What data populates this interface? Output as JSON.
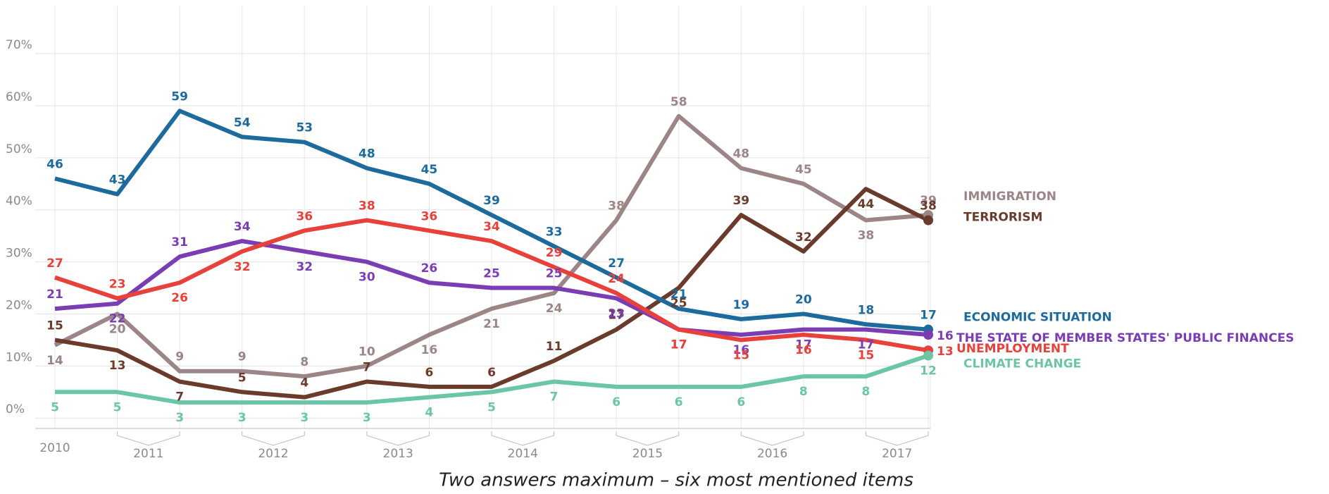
{
  "chart_data": {
    "type": "line",
    "caption": "Two answers maximum – six most mentioned items",
    "categories": [
      null,
      null,
      null,
      null,
      null,
      null,
      null,
      null,
      null,
      null,
      null,
      null,
      null,
      null,
      null
    ],
    "x_labels": [
      "2010",
      "2011",
      "2012",
      "2013",
      "2014",
      "2015",
      "2016",
      "2017"
    ],
    "ylim": [
      -2,
      78
    ],
    "yticks": [
      {
        "value": 0,
        "label": "0%"
      },
      {
        "value": 10,
        "label": "10%"
      },
      {
        "value": 20,
        "label": "20%"
      },
      {
        "value": 30,
        "label": "30%"
      },
      {
        "value": 40,
        "label": "40%"
      },
      {
        "value": 50,
        "label": "50%"
      },
      {
        "value": 60,
        "label": "60%"
      },
      {
        "value": 70,
        "label": "70%"
      }
    ],
    "grid": true,
    "series": [
      {
        "name": "IMMIGRATION",
        "color": "#9b8587",
        "values": [
          14,
          20,
          9,
          9,
          8,
          10,
          16,
          21,
          24,
          38,
          58,
          48,
          45,
          38,
          39
        ]
      },
      {
        "name": "TERRORISM",
        "color": "#6a3b2b",
        "values": [
          15,
          13,
          7,
          5,
          4,
          7,
          6,
          6,
          11,
          17,
          25,
          39,
          32,
          44,
          38
        ]
      },
      {
        "name": "ECONOMIC SITUATION",
        "color": "#1d6a9c",
        "values": [
          46,
          43,
          59,
          54,
          53,
          48,
          45,
          39,
          33,
          27,
          21,
          19,
          20,
          18,
          17
        ]
      },
      {
        "name": "THE STATE OF MEMBER STATES' PUBLIC FINANCES",
        "color": "#7a3db3",
        "values": [
          21,
          22,
          31,
          34,
          32,
          30,
          26,
          25,
          25,
          23,
          17,
          16,
          17,
          17,
          16
        ]
      },
      {
        "name": "UNEMPLOYMENT",
        "color": "#e8403a",
        "values": [
          27,
          23,
          26,
          32,
          36,
          38,
          36,
          34,
          29,
          24,
          17,
          15,
          16,
          15,
          13
        ]
      },
      {
        "name": "CLIMATE CHANGE",
        "color": "#6bc5a7",
        "values": [
          5,
          5,
          3,
          3,
          3,
          3,
          4,
          5,
          7,
          6,
          6,
          6,
          8,
          8,
          12
        ]
      }
    ]
  }
}
